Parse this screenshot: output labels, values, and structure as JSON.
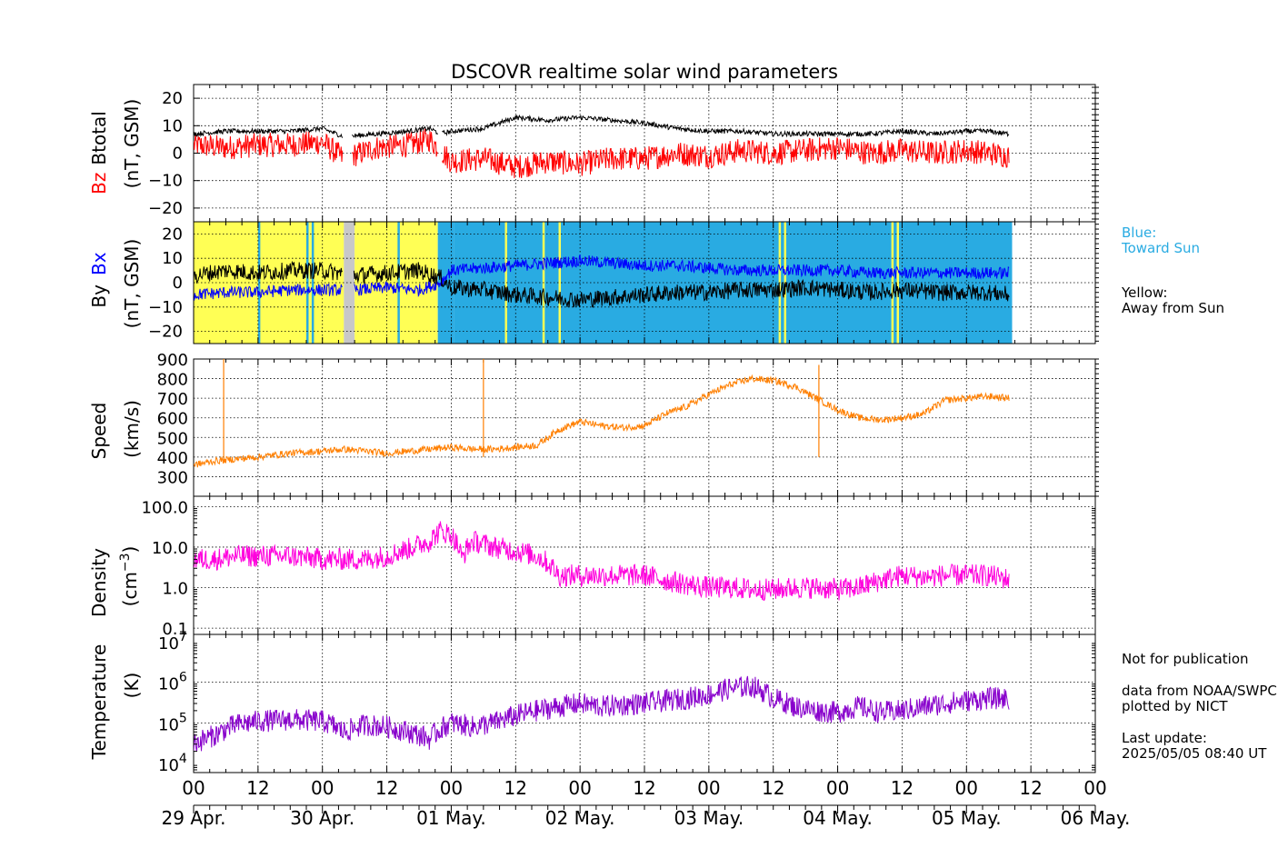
{
  "title": "DSCOVR realtime solar wind parameters",
  "x_ticks": [
    "00",
    "12",
    "00",
    "12",
    "00",
    "12",
    "00",
    "12",
    "00",
    "12",
    "00",
    "12",
    "00",
    "12",
    "00"
  ],
  "x_dates": [
    "29 Apr.",
    "30 Apr.",
    "01 May.",
    "02 May.",
    "03 May.",
    "04 May.",
    "05 May.",
    "06 May."
  ],
  "panels": {
    "mag": {
      "label_bz": "Bz",
      "label_btotal": "Btotal",
      "unit": "(nT, GSM)",
      "ticks": [
        "20",
        "10",
        "0",
        "−10",
        "−20"
      ]
    },
    "bxby": {
      "label_by": "By",
      "label_bx": "Bx",
      "unit": "(nT, GSM)",
      "ticks": [
        "20",
        "10",
        "0",
        "−10",
        "−20"
      ]
    },
    "speed": {
      "label": "Speed",
      "unit": "(km/s)",
      "ticks": [
        "900",
        "800",
        "700",
        "600",
        "500",
        "400",
        "300"
      ]
    },
    "density": {
      "label": "Density",
      "unit": "(cm",
      "unit_exp": "−3",
      "unit_end": ")",
      "ticks": [
        "100.0",
        "10.0",
        "1.0",
        "0.1"
      ]
    },
    "temperature": {
      "label": "Temperature",
      "unit": "(K)",
      "tick_base": "10",
      "tick_exps": [
        "7",
        "6",
        "5",
        "4"
      ]
    }
  },
  "legend": {
    "blue_title": "Blue:",
    "blue_text": "Toward Sun",
    "yellow_title": "Yellow:",
    "yellow_text": "Away from Sun"
  },
  "notes": {
    "line1": "Not for publication",
    "line2": "data from NOAA/SWPC",
    "line3": "plotted by NICT",
    "line4": "Last update:",
    "line5": "2025/05/05 08:40 UT"
  },
  "colors": {
    "bz": "#ff0000",
    "btotal": "#000000",
    "bx": "#0000ff",
    "by": "#000000",
    "speed": "#ff7f00",
    "density": "#ff00dd",
    "temperature": "#8800cc",
    "toward_sun": "#29abe2",
    "away_sun": "#ffff55",
    "nodata": "#c8c8c8"
  },
  "chart_data": [
    {
      "type": "line",
      "title": "DSCOVR realtime solar wind parameters",
      "x_unit": "hours from 29 Apr. 00 UT",
      "xlim": [
        0,
        168
      ],
      "ylabel": "Bz Btotal (nT, GSM)",
      "ylim": [
        -25,
        25
      ],
      "series": [
        {
          "name": "Btotal",
          "x": [
            0,
            6,
            12,
            18,
            24,
            28,
            34,
            40,
            44,
            46,
            48,
            54,
            60,
            66,
            72,
            78,
            84,
            90,
            96,
            102,
            108,
            114,
            120,
            126,
            132,
            138,
            144,
            148,
            152
          ],
          "values": [
            7,
            8,
            8,
            8,
            9,
            6,
            7,
            8,
            9,
            7,
            8,
            9,
            13,
            12,
            13,
            12,
            11,
            9,
            8,
            8,
            7,
            7,
            7,
            7,
            8,
            7,
            8,
            8,
            7
          ]
        },
        {
          "name": "Bz",
          "x": [
            0,
            6,
            12,
            18,
            24,
            28,
            34,
            40,
            44,
            46,
            48,
            54,
            60,
            66,
            72,
            78,
            84,
            90,
            96,
            102,
            108,
            114,
            120,
            126,
            132,
            138,
            144,
            148,
            152
          ],
          "values": [
            3,
            2,
            3,
            3,
            4,
            -2,
            2,
            3,
            5,
            1,
            -3,
            -2,
            -5,
            -3,
            -4,
            -2,
            -2,
            0,
            -1,
            1,
            0,
            1,
            2,
            0,
            1,
            0,
            1,
            0,
            -1
          ]
        }
      ]
    },
    {
      "type": "line",
      "ylabel": "By Bx (nT, GSM)",
      "ylim": [
        -25,
        25
      ],
      "xlim": [
        0,
        168
      ],
      "sector_shading": [
        {
          "from": 0,
          "to": 28,
          "label": "Away from Sun"
        },
        {
          "from": 28,
          "to": 30,
          "label": "no data"
        },
        {
          "from": 30,
          "to": 45.5,
          "label": "Away from Sun"
        },
        {
          "from": 45.5,
          "to": 48.5,
          "label": "Toward Sun"
        },
        {
          "from": 48.5,
          "to": 152.5,
          "label": "Toward Sun"
        }
      ],
      "series": [
        {
          "name": "By",
          "x": [
            0,
            6,
            12,
            18,
            24,
            30,
            36,
            42,
            46,
            48,
            54,
            60,
            66,
            72,
            78,
            84,
            90,
            96,
            102,
            108,
            114,
            120,
            126,
            132,
            138,
            144,
            148,
            152
          ],
          "values": [
            3,
            5,
            4,
            5,
            5,
            3,
            4,
            5,
            2,
            -2,
            -3,
            -5,
            -6,
            -7,
            -6,
            -5,
            -4,
            -4,
            -3,
            -3,
            -2,
            -3,
            -4,
            -3,
            -4,
            -4,
            -4,
            -5
          ]
        },
        {
          "name": "Bx",
          "x": [
            0,
            6,
            12,
            18,
            24,
            30,
            36,
            42,
            46,
            48,
            54,
            60,
            66,
            72,
            78,
            84,
            90,
            96,
            102,
            108,
            114,
            120,
            126,
            132,
            138,
            144,
            148,
            152
          ],
          "values": [
            -5,
            -4,
            -4,
            -3,
            -3,
            -3,
            -2,
            -3,
            0,
            5,
            6,
            7,
            8,
            9,
            8,
            7,
            7,
            6,
            5,
            5,
            5,
            5,
            4,
            4,
            4,
            4,
            4,
            4
          ]
        }
      ]
    },
    {
      "type": "line",
      "ylabel": "Speed (km/s)",
      "ylim": [
        200,
        900
      ],
      "xlim": [
        0,
        168
      ],
      "series": [
        {
          "name": "Speed",
          "x": [
            0,
            4,
            8,
            12,
            18,
            24,
            28,
            32,
            36,
            40,
            44,
            48,
            52,
            56,
            60,
            64,
            68,
            72,
            76,
            80,
            84,
            88,
            92,
            96,
            100,
            104,
            108,
            112,
            116,
            120,
            124,
            128,
            132,
            136,
            140,
            144,
            148,
            152
          ],
          "values": [
            360,
            380,
            390,
            400,
            420,
            430,
            440,
            430,
            420,
            430,
            440,
            450,
            440,
            440,
            450,
            460,
            540,
            580,
            560,
            550,
            560,
            620,
            660,
            720,
            770,
            800,
            790,
            760,
            700,
            640,
            600,
            590,
            600,
            620,
            690,
            700,
            710,
            700
          ]
        }
      ]
    },
    {
      "type": "line",
      "ylabel": "Density (cm^-3)",
      "y_scale": "log",
      "ylim": [
        0.07,
        180
      ],
      "xlim": [
        0,
        168
      ],
      "series": [
        {
          "name": "Density",
          "x": [
            0,
            4,
            8,
            12,
            18,
            24,
            28,
            32,
            36,
            40,
            44,
            46,
            48,
            50,
            52,
            56,
            60,
            64,
            68,
            72,
            76,
            80,
            84,
            88,
            92,
            96,
            100,
            104,
            108,
            112,
            116,
            120,
            124,
            128,
            132,
            136,
            140,
            144,
            148,
            152
          ],
          "values": [
            5,
            5,
            6,
            6,
            6,
            5,
            5,
            5,
            6,
            9,
            14,
            25,
            20,
            5,
            14,
            10,
            8,
            6,
            2,
            2,
            2,
            2,
            2,
            1.5,
            1.2,
            1,
            1,
            0.9,
            0.9,
            1,
            1,
            0.9,
            1,
            1.5,
            2,
            1.8,
            2,
            2,
            2,
            1.6
          ]
        }
      ]
    },
    {
      "type": "line",
      "ylabel": "Temperature (K)",
      "y_scale": "log",
      "ylim": [
        6000,
        15000000
      ],
      "xlim": [
        0,
        168
      ],
      "series": [
        {
          "name": "Temperature",
          "x": [
            0,
            4,
            8,
            12,
            18,
            24,
            28,
            32,
            36,
            40,
            44,
            48,
            52,
            56,
            60,
            64,
            68,
            72,
            76,
            80,
            84,
            88,
            92,
            96,
            100,
            104,
            108,
            112,
            116,
            120,
            124,
            128,
            132,
            136,
            140,
            144,
            148,
            152
          ],
          "values": [
            30000,
            50000,
            90000,
            110000,
            120000,
            110000,
            60000,
            90000,
            80000,
            60000,
            40000,
            100000,
            80000,
            100000,
            150000,
            200000,
            250000,
            300000,
            250000,
            280000,
            300000,
            350000,
            400000,
            500000,
            700000,
            800000,
            400000,
            250000,
            200000,
            180000,
            250000,
            180000,
            200000,
            250000,
            300000,
            350000,
            400000,
            400000
          ]
        }
      ]
    }
  ]
}
